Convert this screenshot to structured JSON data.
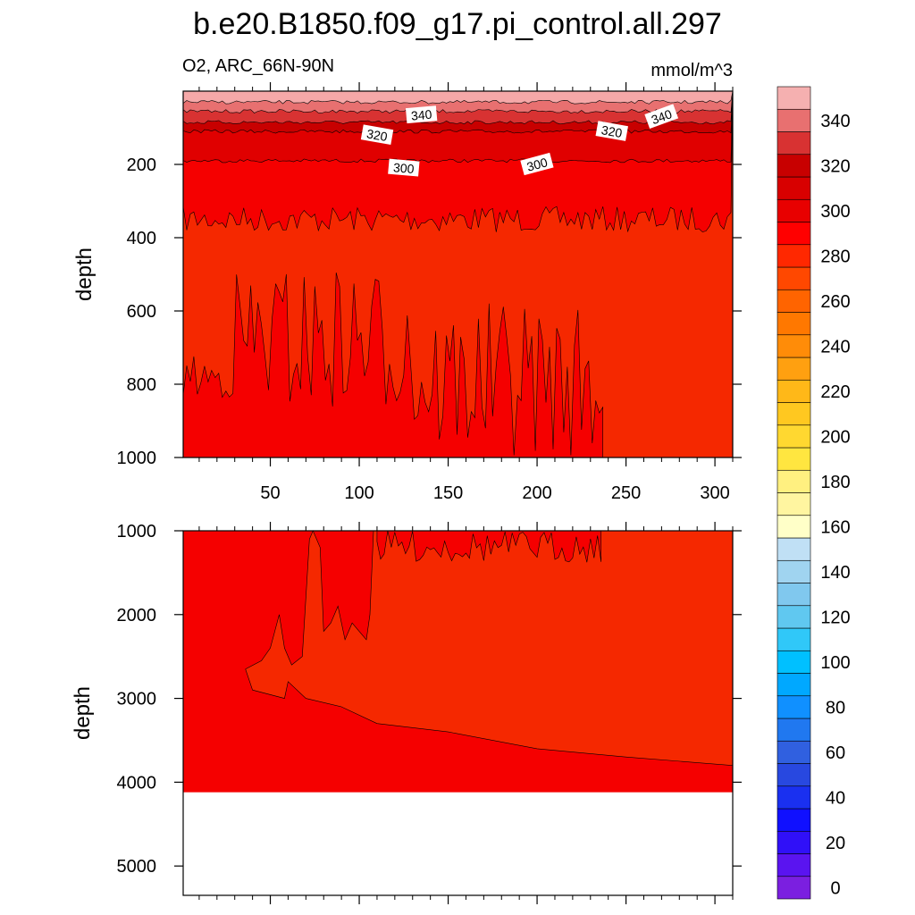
{
  "title": "b.e20.B1850.f09_g17.pi_control.all.297",
  "variable_label": "O2, ARC_66N-90N",
  "units_label": "mmol/m^3",
  "chart_data": [
    {
      "type": "heatmap",
      "panel": "upper",
      "ylabel": "depth",
      "xlim": [
        1,
        310
      ],
      "ylim": [
        1000,
        0
      ],
      "x_ticks": [
        50,
        100,
        150,
        200,
        250,
        300
      ],
      "y_ticks": [
        200,
        400,
        600,
        800,
        1000
      ],
      "contour_labels": [
        "340",
        "320",
        "320",
        "340",
        "300",
        "300"
      ],
      "bands": [
        {
          "upper_value": "above 340",
          "color": "#f5a8a8",
          "depth_bottom": 30
        },
        {
          "upper_value": "340-350",
          "color": "#e87070",
          "depth_bottom": 55
        },
        {
          "upper_value": "330-340",
          "color": "#d83232",
          "depth_bottom": 85
        },
        {
          "upper_value": "320-330",
          "color": "#c80000",
          "depth_bottom": 110
        },
        {
          "upper_value": "310-320",
          "color": "#e00000",
          "depth_bottom": 190
        },
        {
          "upper_value": "300-310",
          "color": "#f50000",
          "depth_bottom": 350
        },
        {
          "upper_value": "290-300",
          "color": "#f52800",
          "depth_bottom": 1000
        }
      ]
    },
    {
      "type": "heatmap",
      "panel": "lower",
      "ylabel": "depth",
      "xlim": [
        1,
        310
      ],
      "ylim": [
        5350,
        1000
      ],
      "y_ticks": [
        1000,
        2000,
        3000,
        4000,
        5000
      ],
      "sea_floor_depth": 4120,
      "bands": [
        {
          "value": "290-300",
          "color": "#f52800",
          "region": "2000-3500 m core"
        },
        {
          "value": "300-310",
          "color": "#f50000",
          "region": "surrounding and bottom layer"
        }
      ]
    }
  ],
  "colorbar": {
    "tick_labels": [
      "0",
      "20",
      "40",
      "60",
      "80",
      "100",
      "120",
      "140",
      "160",
      "180",
      "200",
      "220",
      "240",
      "260",
      "280",
      "300",
      "320",
      "340"
    ],
    "colors": [
      "#7b1fe0",
      "#5a14f0",
      "#3010f8",
      "#1010ff",
      "#1a30f0",
      "#2848e0",
      "#3060e0",
      "#2078f0",
      "#1090ff",
      "#00a8ff",
      "#00c0ff",
      "#30c8f8",
      "#60c8f0",
      "#80c8ee",
      "#a0d4f0",
      "#c0e0f5",
      "#ffffc8",
      "#fff5a0",
      "#fff080",
      "#ffe640",
      "#ffd830",
      "#ffc820",
      "#ffb818",
      "#ffa010",
      "#ff8c08",
      "#ff7800",
      "#ff6400",
      "#ff4800",
      "#ff2800",
      "#ff0000",
      "#e80000",
      "#d80000",
      "#c80000",
      "#d83232",
      "#e87070",
      "#f5b0b0"
    ]
  }
}
